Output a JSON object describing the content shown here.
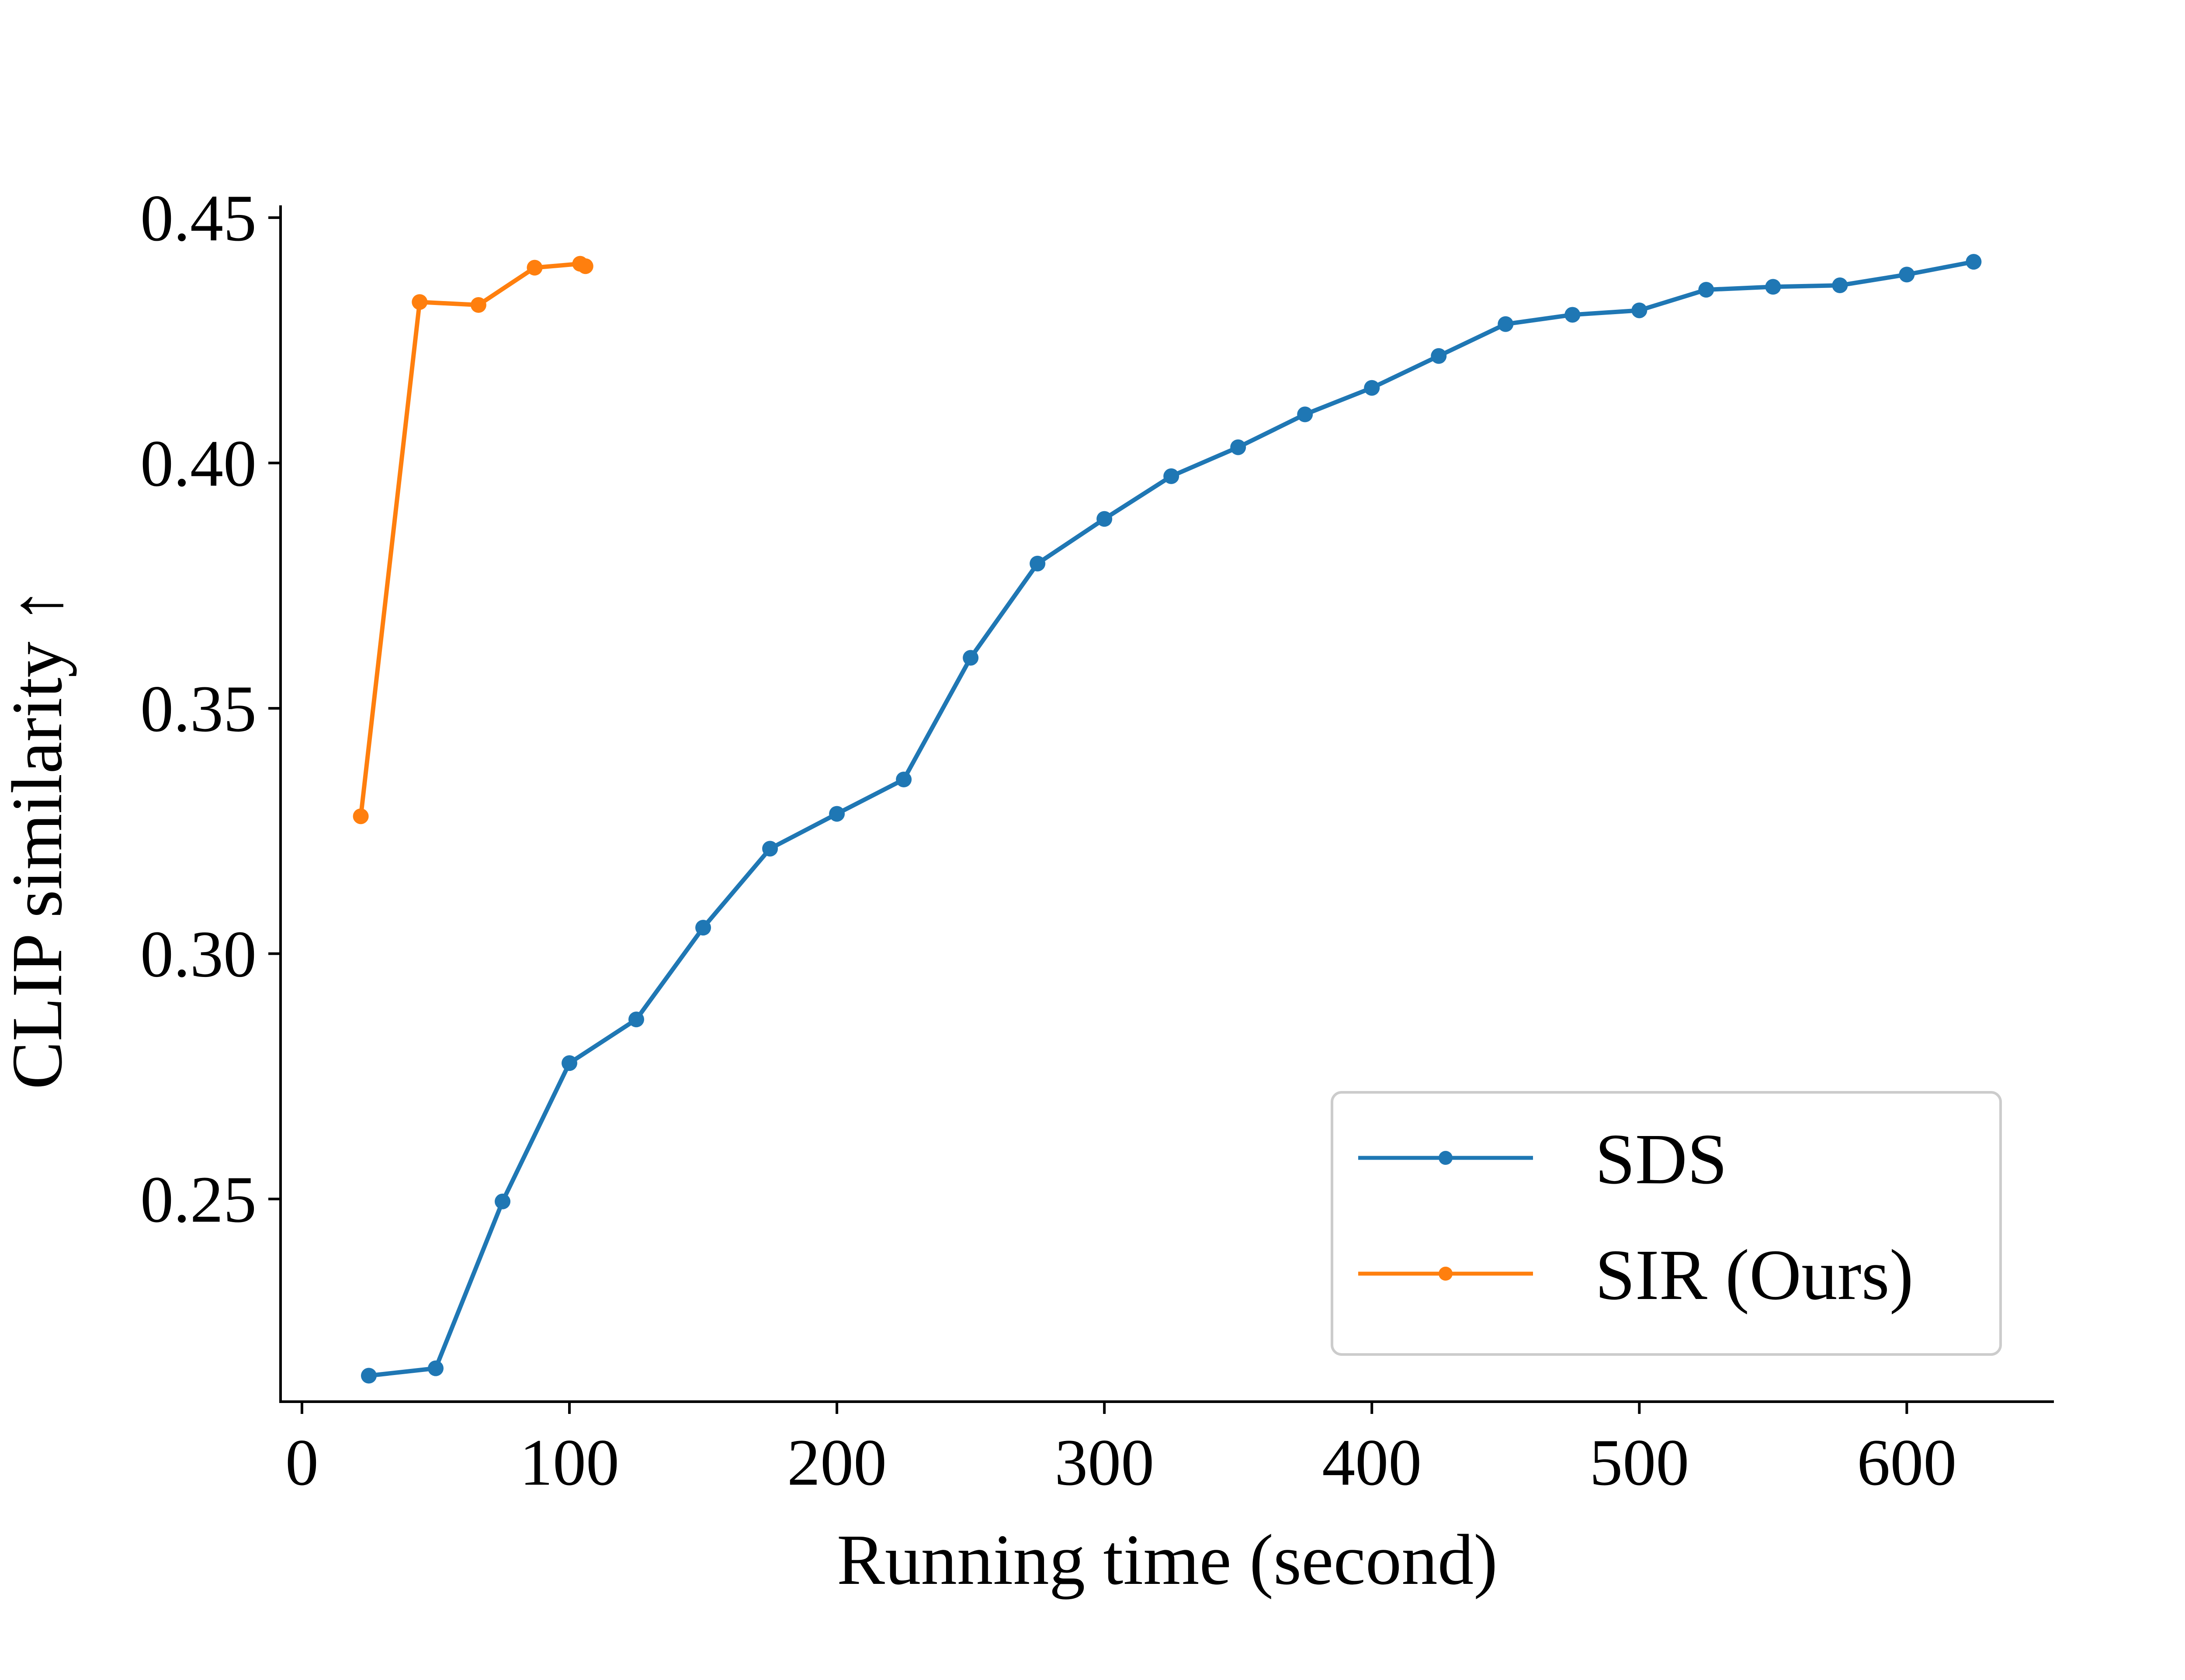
{
  "chart_data": {
    "type": "line",
    "title": "",
    "xlabel": "Running time (second)",
    "ylabel": "CLIP similarity ↑",
    "xlim": [
      -8,
      655
    ],
    "ylim": [
      0.2087,
      0.4525
    ],
    "xticks": [
      0,
      100,
      200,
      300,
      400,
      500,
      600
    ],
    "yticks": [
      0.25,
      0.3,
      0.35,
      0.4,
      0.45
    ],
    "xtick_labels": [
      "0",
      "100",
      "200",
      "300",
      "400",
      "500",
      "600"
    ],
    "ytick_labels": [
      "0.25",
      "0.30",
      "0.35",
      "0.40",
      "0.45"
    ],
    "grid": false,
    "legend_position": "lower-right",
    "series": [
      {
        "name": "SDS",
        "color": "#1f77b4",
        "x": [
          25,
          50,
          75,
          100,
          125,
          150,
          175,
          200,
          225,
          250,
          275,
          300,
          325,
          350,
          375,
          400,
          425,
          450,
          475,
          500,
          525,
          550,
          575,
          600,
          625
        ],
        "y": [
          0.214,
          0.2155,
          0.2495,
          0.2777,
          0.2866,
          0.3053,
          0.3214,
          0.3285,
          0.3355,
          0.3603,
          0.3795,
          0.3886,
          0.3973,
          0.4032,
          0.4099,
          0.4153,
          0.4218,
          0.4283,
          0.4302,
          0.4311,
          0.4353,
          0.4359,
          0.4362,
          0.4384,
          0.441
        ]
      },
      {
        "name": "SIR (Ours)",
        "color": "#ff7f0e",
        "x": [
          22,
          44,
          66,
          87,
          104,
          106
        ],
        "y": [
          0.328,
          0.4328,
          0.4322,
          0.4398,
          0.4406,
          0.4401
        ]
      }
    ]
  }
}
